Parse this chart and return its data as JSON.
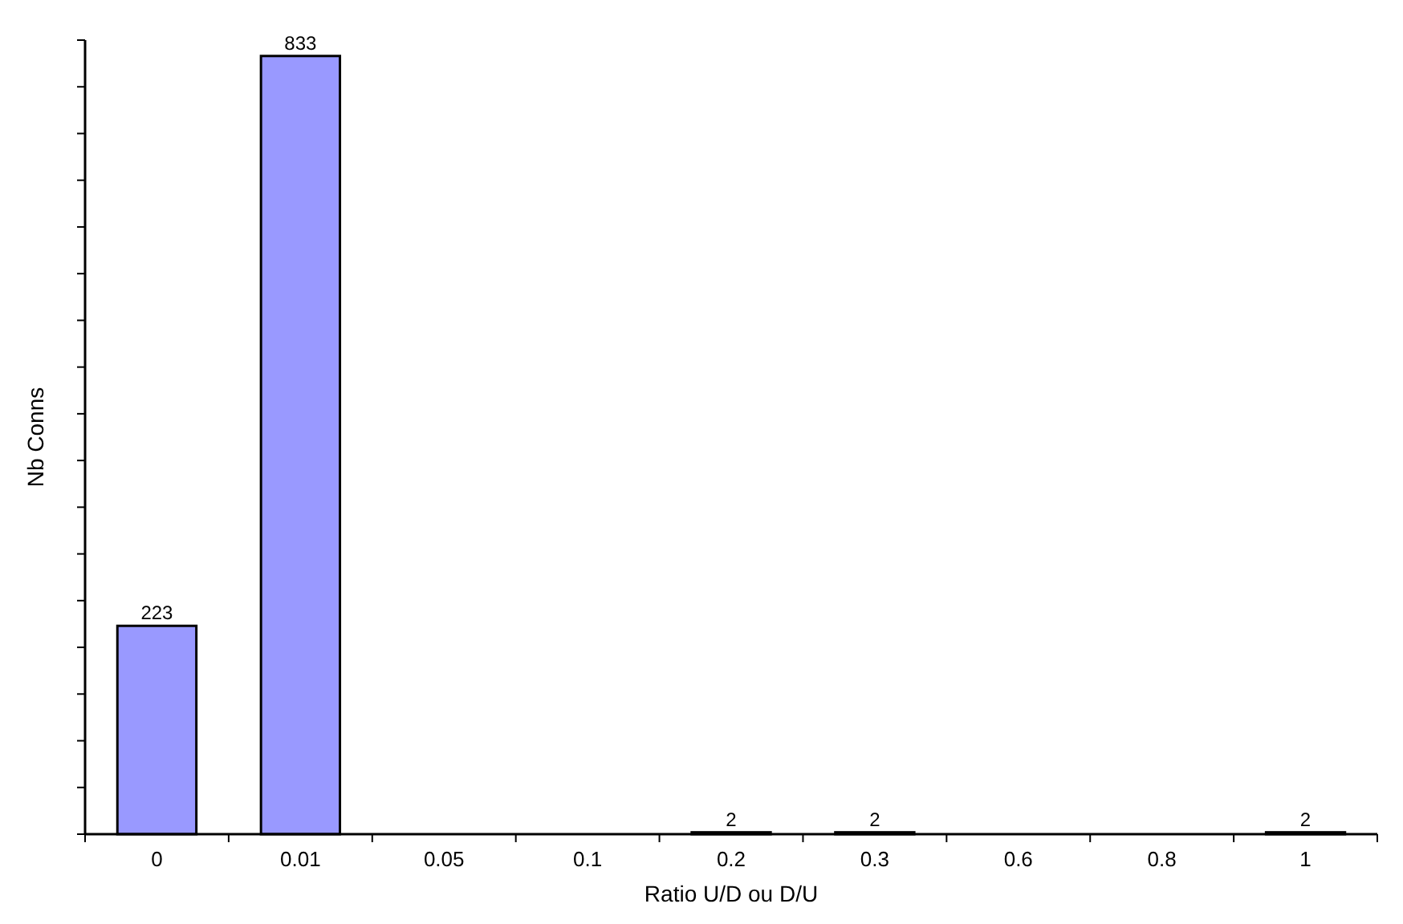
{
  "chart_data": {
    "type": "bar",
    "xlabel": "Ratio U/D ou D/U",
    "ylabel": "Nb Conns",
    "categories": [
      "0",
      "0.01",
      "0.05",
      "0.1",
      "0.2",
      "0.3",
      "0.6",
      "0.8",
      "1"
    ],
    "values": [
      223,
      833,
      0,
      0,
      2,
      2,
      0,
      0,
      2
    ],
    "value_labels": [
      "223",
      "833",
      null,
      null,
      "2",
      "2",
      null,
      null,
      "2"
    ],
    "color": "#9999ff",
    "ylim": [
      0,
      850
    ],
    "yticks": [
      {
        "value": 0,
        "label": null
      },
      {
        "value": 50,
        "label": null
      },
      {
        "value": 100,
        "label": null
      },
      {
        "value": 150,
        "label": null
      },
      {
        "value": 200,
        "label": null
      },
      {
        "value": 250,
        "label": null
      },
      {
        "value": 300,
        "label": null
      },
      {
        "value": 350,
        "label": null
      },
      {
        "value": 400,
        "label": null
      },
      {
        "value": 450,
        "label": null
      },
      {
        "value": 500,
        "label": null
      },
      {
        "value": 550,
        "label": null
      },
      {
        "value": 600,
        "label": null
      },
      {
        "value": 650,
        "label": null
      },
      {
        "value": 700,
        "label": null
      },
      {
        "value": 750,
        "label": null
      },
      {
        "value": 800,
        "label": null
      },
      {
        "value": 850,
        "label": null
      }
    ],
    "tick_labels": "x",
    "grid": false
  }
}
